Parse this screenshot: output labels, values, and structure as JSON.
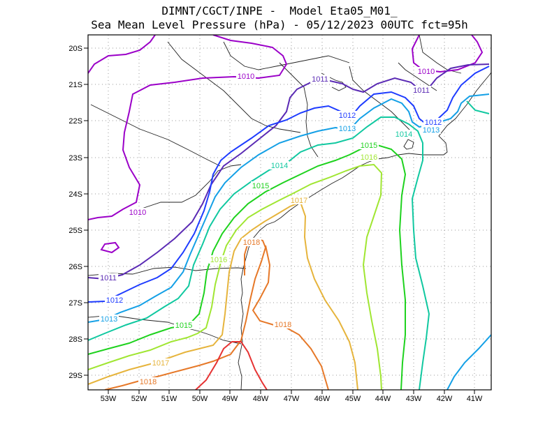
{
  "header": {
    "line1": "DIMNT/CGCT/INPE -  Model Eta05_M01_",
    "line2": "Sea Mean Level Pressure (hPa) - 05/12/2023 00UTC fct=95h"
  },
  "axes": {
    "lon_labels": [
      "53W",
      "52W",
      "51W",
      "50W",
      "49W",
      "48W",
      "47W",
      "46W",
      "45W",
      "44W",
      "43W",
      "42W",
      "41W"
    ],
    "lat_labels": [
      "20S",
      "21S",
      "22S",
      "23S",
      "24S",
      "25S",
      "26S",
      "27S",
      "28S",
      "29S"
    ]
  },
  "contour_colors": {
    "1010": "#9b00c8",
    "1011": "#5a2ab4",
    "1012": "#1e3cff",
    "1013": "#14a0e6",
    "1014": "#10c8a0",
    "1015": "#1ed21e",
    "1016": "#a0e632",
    "1017": "#e6b43c",
    "1018": "#e67828",
    "1019": "#e63232"
  },
  "contour_labels": [
    {
      "text": "1010",
      "level": "1010"
    },
    {
      "text": "1010",
      "level": "1010"
    },
    {
      "text": "1010",
      "level": "1010"
    },
    {
      "text": "1011",
      "level": "1011"
    },
    {
      "text": "1011",
      "level": "1011"
    },
    {
      "text": "1011",
      "level": "1011"
    },
    {
      "text": "1012",
      "level": "1012"
    },
    {
      "text": "1012",
      "level": "1012"
    },
    {
      "text": "1012",
      "level": "1012"
    },
    {
      "text": "1013",
      "level": "1013"
    },
    {
      "text": "1013",
      "level": "1013"
    },
    {
      "text": "1013",
      "level": "1013"
    },
    {
      "text": "1014",
      "level": "1014"
    },
    {
      "text": "1014",
      "level": "1014"
    },
    {
      "text": "1015",
      "level": "1015"
    },
    {
      "text": "1015",
      "level": "1015"
    },
    {
      "text": "1015",
      "level": "1015"
    },
    {
      "text": "1016",
      "level": "1016"
    },
    {
      "text": "1016",
      "level": "1016"
    },
    {
      "text": "1017",
      "level": "1017"
    },
    {
      "text": "1017",
      "level": "1017"
    },
    {
      "text": "1018",
      "level": "1018"
    },
    {
      "text": "1018",
      "level": "1018"
    },
    {
      "text": "1018",
      "level": "1018"
    }
  ]
}
